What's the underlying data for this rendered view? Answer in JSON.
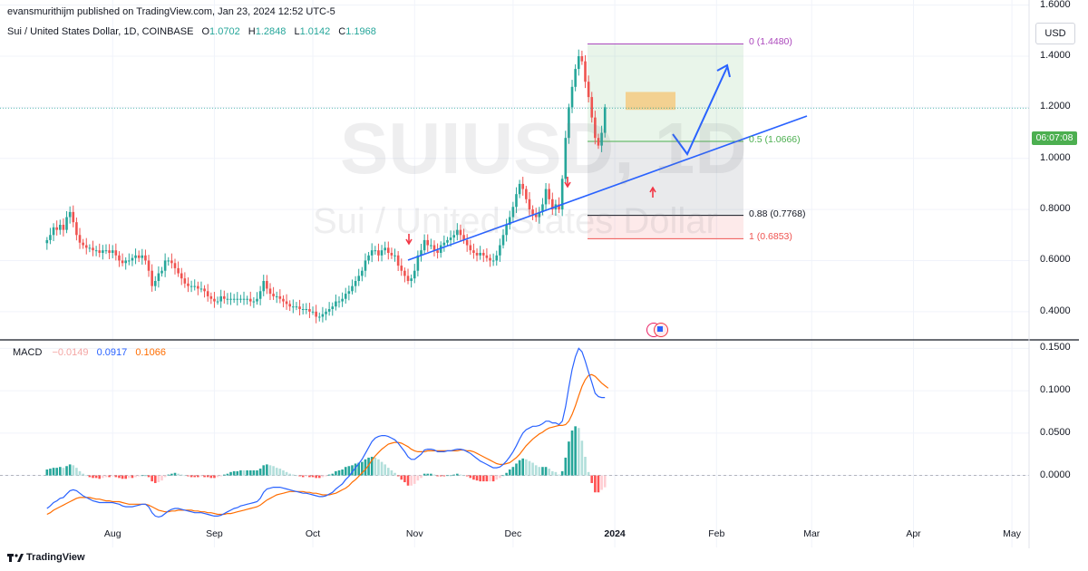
{
  "header": {
    "published": "evansmurithijm published on TradingView.com, Jan 23, 2024 12:52 UTC-5",
    "symbol": "Sui / United States Dollar, 1D, COINBASE",
    "ohlc": [
      {
        "key": "O",
        "value": "1.0702"
      },
      {
        "key": "H",
        "value": "1.2848"
      },
      {
        "key": "L",
        "value": "1.0142"
      },
      {
        "key": "C",
        "value": "1.1968"
      }
    ]
  },
  "watermark": {
    "ticker": "SUIUSD, 1D",
    "name": "Sui / United States Dollar"
  },
  "currency_button": "USD",
  "countdown": "06:07:08",
  "footer": {
    "brand": "TradingView"
  },
  "colors": {
    "up": "#26a69a",
    "down": "#ef5350",
    "macd": "#2962ff",
    "signal": "#ff6d00",
    "drawing": "#2962ff",
    "grid": "#f0f3fa"
  },
  "chart_data": [
    {
      "type": "candlestick",
      "title": "Sui / United States Dollar, 1D, COINBASE",
      "ylim": [
        0.3,
        1.62
      ],
      "y_ticks": [
        "1.6000",
        "1.4000",
        "1.2000",
        "1.0000",
        "0.8000",
        "0.6000",
        "0.4000"
      ],
      "x_ticks": [
        "Aug",
        "Sep",
        "Oct",
        "Nov",
        "Dec",
        "2024",
        "Feb",
        "Mar",
        "Apr",
        "May"
      ],
      "x_tick_days": [
        31,
        62,
        92,
        123,
        153,
        184,
        215,
        244,
        275,
        305
      ],
      "close": [
        0.68,
        0.7,
        0.73,
        0.72,
        0.74,
        0.72,
        0.77,
        0.79,
        0.75,
        0.7,
        0.67,
        0.66,
        0.65,
        0.65,
        0.64,
        0.64,
        0.63,
        0.64,
        0.64,
        0.63,
        0.64,
        0.62,
        0.6,
        0.59,
        0.6,
        0.6,
        0.61,
        0.62,
        0.61,
        0.62,
        0.6,
        0.56,
        0.5,
        0.52,
        0.55,
        0.56,
        0.6,
        0.6,
        0.59,
        0.57,
        0.55,
        0.53,
        0.51,
        0.5,
        0.5,
        0.5,
        0.49,
        0.49,
        0.48,
        0.46,
        0.45,
        0.44,
        0.44,
        0.46,
        0.45,
        0.45,
        0.45,
        0.45,
        0.45,
        0.45,
        0.45,
        0.45,
        0.44,
        0.44,
        0.45,
        0.48,
        0.52,
        0.49,
        0.47,
        0.46,
        0.46,
        0.45,
        0.44,
        0.43,
        0.42,
        0.42,
        0.42,
        0.41,
        0.41,
        0.41,
        0.4,
        0.4,
        0.38,
        0.38,
        0.39,
        0.4,
        0.41,
        0.42,
        0.44,
        0.44,
        0.45,
        0.47,
        0.48,
        0.5,
        0.52,
        0.54,
        0.56,
        0.6,
        0.62,
        0.64,
        0.64,
        0.62,
        0.64,
        0.65,
        0.63,
        0.62,
        0.62,
        0.58,
        0.56,
        0.54,
        0.52,
        0.53,
        0.56,
        0.62,
        0.64,
        0.68,
        0.66,
        0.66,
        0.64,
        0.63,
        0.66,
        0.67,
        0.68,
        0.69,
        0.7,
        0.72,
        0.7,
        0.68,
        0.66,
        0.64,
        0.63,
        0.62,
        0.63,
        0.62,
        0.61,
        0.6,
        0.6,
        0.62,
        0.66,
        0.7,
        0.74,
        0.77,
        0.81,
        0.86,
        0.9,
        0.88,
        0.84,
        0.8,
        0.78,
        0.77,
        0.79,
        0.82,
        0.88,
        0.84,
        0.8,
        0.82,
        0.8,
        0.92,
        1.08,
        1.2,
        1.28,
        1.35,
        1.4,
        1.38,
        1.3,
        1.24,
        1.16,
        1.08,
        1.05,
        1.1,
        1.2
      ],
      "macd": [
        -0.039,
        -0.036,
        -0.032,
        -0.03,
        -0.027,
        -0.026,
        -0.022,
        -0.018,
        -0.017,
        -0.018,
        -0.021,
        -0.024,
        -0.026,
        -0.028,
        -0.03,
        -0.031,
        -0.032,
        -0.032,
        -0.032,
        -0.032,
        -0.032,
        -0.033,
        -0.034,
        -0.036,
        -0.037,
        -0.037,
        -0.037,
        -0.036,
        -0.035,
        -0.034,
        -0.034,
        -0.037,
        -0.044,
        -0.048,
        -0.049,
        -0.048,
        -0.045,
        -0.042,
        -0.04,
        -0.039,
        -0.039,
        -0.04,
        -0.041,
        -0.042,
        -0.043,
        -0.044,
        -0.044,
        -0.044,
        -0.045,
        -0.046,
        -0.047,
        -0.048,
        -0.048,
        -0.047,
        -0.045,
        -0.043,
        -0.041,
        -0.039,
        -0.038,
        -0.036,
        -0.035,
        -0.034,
        -0.033,
        -0.032,
        -0.031,
        -0.027,
        -0.02,
        -0.016,
        -0.015,
        -0.014,
        -0.014,
        -0.014,
        -0.015,
        -0.016,
        -0.017,
        -0.018,
        -0.019,
        -0.02,
        -0.021,
        -0.021,
        -0.022,
        -0.023,
        -0.024,
        -0.025,
        -0.025,
        -0.024,
        -0.022,
        -0.02,
        -0.016,
        -0.013,
        -0.01,
        -0.005,
        -0.001,
        0.004,
        0.009,
        0.014,
        0.019,
        0.026,
        0.033,
        0.04,
        0.044,
        0.046,
        0.047,
        0.047,
        0.046,
        0.044,
        0.042,
        0.038,
        0.033,
        0.028,
        0.022,
        0.019,
        0.019,
        0.022,
        0.025,
        0.03,
        0.031,
        0.031,
        0.03,
        0.028,
        0.028,
        0.028,
        0.029,
        0.029,
        0.03,
        0.031,
        0.031,
        0.03,
        0.028,
        0.026,
        0.023,
        0.02,
        0.017,
        0.015,
        0.013,
        0.011,
        0.009,
        0.009,
        0.01,
        0.013,
        0.017,
        0.022,
        0.028,
        0.035,
        0.043,
        0.05,
        0.054,
        0.056,
        0.058,
        0.058,
        0.059,
        0.061,
        0.064,
        0.064,
        0.062,
        0.062,
        0.06,
        0.064,
        0.081,
        0.104,
        0.125,
        0.14,
        0.15,
        0.146,
        0.135,
        0.122,
        0.11,
        0.097,
        0.093,
        0.092,
        0.092
      ],
      "signal": [
        -0.046,
        -0.044,
        -0.041,
        -0.039,
        -0.037,
        -0.035,
        -0.033,
        -0.031,
        -0.029,
        -0.027,
        -0.026,
        -0.026,
        -0.026,
        -0.026,
        -0.027,
        -0.028,
        -0.028,
        -0.029,
        -0.03,
        -0.03,
        -0.031,
        -0.031,
        -0.031,
        -0.032,
        -0.033,
        -0.034,
        -0.034,
        -0.034,
        -0.034,
        -0.034,
        -0.034,
        -0.035,
        -0.037,
        -0.039,
        -0.041,
        -0.042,
        -0.043,
        -0.043,
        -0.042,
        -0.042,
        -0.041,
        -0.041,
        -0.041,
        -0.041,
        -0.041,
        -0.042,
        -0.042,
        -0.043,
        -0.043,
        -0.044,
        -0.044,
        -0.045,
        -0.046,
        -0.046,
        -0.046,
        -0.045,
        -0.045,
        -0.044,
        -0.043,
        -0.042,
        -0.041,
        -0.04,
        -0.039,
        -0.038,
        -0.037,
        -0.035,
        -0.032,
        -0.029,
        -0.027,
        -0.025,
        -0.023,
        -0.022,
        -0.021,
        -0.02,
        -0.019,
        -0.019,
        -0.019,
        -0.019,
        -0.019,
        -0.02,
        -0.02,
        -0.021,
        -0.021,
        -0.022,
        -0.023,
        -0.023,
        -0.023,
        -0.022,
        -0.021,
        -0.019,
        -0.017,
        -0.015,
        -0.012,
        -0.008,
        -0.005,
        -0.001,
        0.003,
        0.007,
        0.012,
        0.018,
        0.023,
        0.027,
        0.031,
        0.034,
        0.037,
        0.038,
        0.039,
        0.039,
        0.038,
        0.036,
        0.034,
        0.031,
        0.029,
        0.028,
        0.028,
        0.028,
        0.029,
        0.029,
        0.029,
        0.029,
        0.029,
        0.029,
        0.029,
        0.029,
        0.029,
        0.029,
        0.03,
        0.03,
        0.029,
        0.029,
        0.028,
        0.026,
        0.024,
        0.022,
        0.02,
        0.018,
        0.016,
        0.014,
        0.013,
        0.013,
        0.014,
        0.015,
        0.018,
        0.021,
        0.025,
        0.03,
        0.035,
        0.039,
        0.043,
        0.046,
        0.049,
        0.051,
        0.054,
        0.056,
        0.057,
        0.058,
        0.059,
        0.059,
        0.06,
        0.064,
        0.072,
        0.082,
        0.094,
        0.105,
        0.113,
        0.118,
        0.119,
        0.117,
        0.113,
        0.109,
        0.106,
        0.103
      ],
      "fib_levels": [
        {
          "label": "0 (1.4480)",
          "value": 1.448,
          "color": "#ab47bc"
        },
        {
          "label": "0.5 (1.0666)",
          "value": 1.0666,
          "color": "#4caf50"
        },
        {
          "label": "0.88 (0.7768)",
          "value": 0.7768,
          "color": "#131722"
        },
        {
          "label": "1 (0.6853)",
          "value": 0.6853,
          "color": "#ef5350"
        }
      ],
      "last_price": 1.1968
    },
    {
      "type": "line",
      "title": "MACD",
      "legend": [
        {
          "label": "MACD",
          "value": "",
          "color": "#131722"
        },
        {
          "label": "",
          "value": "−0.0149",
          "color": "#f4a6a4"
        },
        {
          "label": "",
          "value": "0.0917",
          "color": "#2962ff"
        },
        {
          "label": "",
          "value": "0.1066",
          "color": "#ff6d00"
        }
      ],
      "ylim": [
        -0.085,
        0.16
      ],
      "y_ticks": [
        "0.1500",
        "0.1000",
        "0.0500",
        "0.0000"
      ]
    }
  ]
}
